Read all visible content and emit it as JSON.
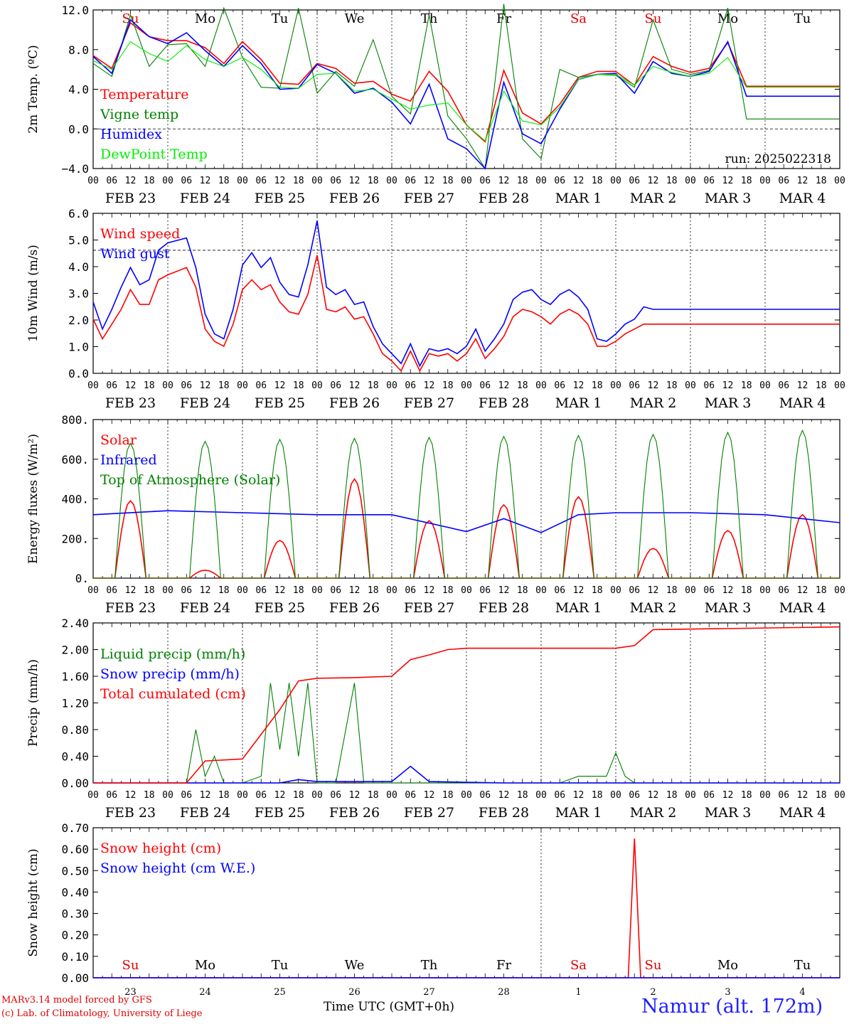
{
  "chart_data": [
    {
      "type": "line",
      "ylabel": "2m Temp. (ºC)",
      "ylim": [
        -4,
        12
      ],
      "yticks": [
        "−4.0",
        "0.0",
        "4.0",
        "8.0",
        "12.0"
      ],
      "x_ticks_hours": [
        "00",
        "06",
        "12",
        "18"
      ],
      "days": [
        "FEB 23",
        "FEB 24",
        "FEB 25",
        "FEB 26",
        "FEB 27",
        "FEB 28",
        "MAR  1",
        "MAR  2",
        "MAR  3",
        "MAR  4"
      ],
      "weekdays": [
        "Su",
        "Mo",
        "Tu",
        "We",
        "Th",
        "Fr",
        "Sa",
        "Su",
        "Mo",
        "Tu"
      ],
      "weekday_colors": [
        "#e00000",
        "#000",
        "#000",
        "#000",
        "#000",
        "#000",
        "#e00000",
        "#e00000",
        "#000",
        "#000"
      ],
      "annotation": "run: 2025022318",
      "series": [
        {
          "name": "Temperature",
          "color": "#ff0000",
          "x": [
            0,
            6,
            12,
            18,
            24,
            30,
            36,
            42,
            48,
            54,
            60,
            66,
            72,
            78,
            84,
            90,
            96,
            102,
            108,
            114,
            120,
            126,
            132,
            138,
            144,
            150,
            156,
            162,
            168,
            174,
            180,
            186,
            192,
            198,
            204,
            210,
            216,
            222,
            228,
            234,
            240
          ],
          "values": [
            7.4,
            6.1,
            10.7,
            9.3,
            8.9,
            8.9,
            8.2,
            6.6,
            8.8,
            7.0,
            4.6,
            4.5,
            6.6,
            6.1,
            4.6,
            4.8,
            3.5,
            2.8,
            5.8,
            3.8,
            0.4,
            -1.3,
            5.9,
            1.6,
            0.5,
            2.5,
            5.2,
            5.8,
            5.8,
            4.4,
            7.3,
            6.3,
            5.7,
            6.1,
            8.7,
            4.3,
            4.3,
            4.3,
            4.3,
            4.3,
            4.3
          ]
        },
        {
          "name": "Vigne temp",
          "color": "#008000",
          "x": [
            0,
            6,
            12,
            18,
            24,
            30,
            36,
            42,
            48,
            54,
            60,
            66,
            72,
            78,
            84,
            90,
            96,
            102,
            108,
            114,
            120,
            126,
            132,
            138,
            144,
            150,
            156,
            162,
            168,
            174,
            180,
            186,
            192,
            198,
            204,
            210,
            216,
            222,
            228,
            234,
            240
          ],
          "values": [
            6.6,
            5.3,
            11.5,
            6.3,
            8.5,
            8.6,
            6.3,
            12.2,
            7.2,
            4.2,
            4.1,
            12.2,
            3.6,
            5.8,
            4.3,
            9.0,
            3.3,
            1.5,
            11.5,
            1.3,
            -1.0,
            -4.0,
            12.6,
            -1.0,
            -3.0,
            6.0,
            5.2,
            5.5,
            5.4,
            4.2,
            11.0,
            6.0,
            5.5,
            5.9,
            12.2,
            1.0,
            1.0,
            1.0,
            1.0,
            1.0,
            1.0
          ]
        },
        {
          "name": "Humidex",
          "color": "#0000ff",
          "x": [
            0,
            6,
            12,
            18,
            24,
            30,
            36,
            42,
            48,
            54,
            60,
            66,
            72,
            78,
            84,
            90,
            96,
            102,
            108,
            114,
            120,
            126,
            132,
            138,
            144,
            150,
            156,
            162,
            168,
            174,
            180,
            186,
            192,
            198,
            204,
            210,
            216,
            222,
            228,
            234,
            240
          ],
          "values": [
            7.3,
            5.6,
            11.0,
            9.3,
            8.6,
            9.7,
            7.9,
            6.3,
            8.4,
            6.6,
            4.0,
            4.1,
            6.5,
            5.6,
            3.6,
            4.1,
            2.7,
            0.5,
            4.5,
            -1.0,
            -2.0,
            -4.0,
            4.7,
            -0.5,
            -1.5,
            2.0,
            5.0,
            5.5,
            5.6,
            3.6,
            6.8,
            5.6,
            5.3,
            5.8,
            8.8,
            3.3,
            3.3,
            3.3,
            3.3,
            3.3,
            3.3
          ]
        },
        {
          "name": "DewPoint Temp",
          "color": "#00ee00",
          "x": [
            0,
            6,
            12,
            18,
            24,
            30,
            36,
            42,
            48,
            54,
            60,
            66,
            72,
            78,
            84,
            90,
            96,
            102,
            108,
            114,
            120,
            126,
            132,
            138,
            144,
            150,
            156,
            162,
            168,
            174,
            180,
            186,
            192,
            198,
            204,
            210,
            216,
            222,
            228,
            234,
            240
          ],
          "values": [
            6.9,
            6.0,
            8.8,
            7.6,
            6.8,
            8.4,
            7.0,
            6.3,
            7.2,
            6.0,
            4.2,
            4.1,
            5.5,
            5.6,
            3.8,
            4.0,
            3.0,
            2.0,
            2.4,
            2.6,
            0.4,
            -1.2,
            3.8,
            0.8,
            0.4,
            2.2,
            5.0,
            5.5,
            5.5,
            4.4,
            6.3,
            5.7,
            5.3,
            5.6,
            7.2,
            4.2,
            4.2,
            4.2,
            4.2,
            4.2,
            4.2
          ]
        }
      ]
    },
    {
      "type": "line",
      "ylabel": "10m Wind (m/s)",
      "ylim": [
        0,
        6.5
      ],
      "yticks": [
        "0.0",
        "1.0",
        "2.0",
        "3.0",
        "4.0",
        "5.0",
        "6.0"
      ],
      "days": [
        "FEB 23",
        "FEB 24",
        "FEB 25",
        "FEB 26",
        "FEB 27",
        "FEB 28",
        "MAR  1",
        "MAR  2",
        "MAR  3",
        "MAR  4"
      ],
      "series": [
        {
          "name": "Wind speed",
          "color": "#ff0000",
          "x": [
            0,
            3,
            6,
            9,
            12,
            15,
            18,
            21,
            24,
            30,
            33,
            36,
            39,
            42,
            45,
            48,
            51,
            54,
            57,
            60,
            63,
            66,
            69,
            72,
            75,
            78,
            81,
            84,
            87,
            90,
            93,
            96,
            99,
            102,
            105,
            108,
            111,
            114,
            117,
            120,
            123,
            126,
            129,
            132,
            135,
            138,
            141,
            144,
            147,
            150,
            153,
            156,
            159,
            162,
            165,
            168,
            171,
            174,
            177,
            180,
            183,
            186,
            189,
            192,
            195,
            198,
            201,
            204,
            207,
            210,
            213,
            216,
            219,
            222,
            225,
            228,
            231,
            234,
            237,
            240
          ],
          "values": [
            2.2,
            1.4,
            2.0,
            2.6,
            3.4,
            2.8,
            2.8,
            3.8,
            4.0,
            4.3,
            3.5,
            1.8,
            1.3,
            1.1,
            2.0,
            3.4,
            3.8,
            3.4,
            3.6,
            2.9,
            2.5,
            2.4,
            3.2,
            4.8,
            2.6,
            2.5,
            2.7,
            2.2,
            2.3,
            1.6,
            0.8,
            0.5,
            0.1,
            0.9,
            0.1,
            0.8,
            0.7,
            0.8,
            0.5,
            0.8,
            1.4,
            0.6,
            1.0,
            1.5,
            2.3,
            2.6,
            2.5,
            2.3,
            2.0,
            2.4,
            2.6,
            2.4,
            2.0,
            1.1,
            1.1,
            1.3,
            1.6,
            1.8,
            2.0,
            2.0,
            2.0,
            2.0,
            2.0,
            2.0,
            2.0,
            2.0,
            2.0,
            2.0,
            2.0,
            2.0,
            2.0,
            2.0,
            2.0,
            2.0,
            2.0,
            2.0,
            2.0,
            2.0,
            2.0,
            2.0
          ]
        },
        {
          "name": "Wind gust",
          "color": "#0000ff",
          "x": [
            0,
            3,
            6,
            9,
            12,
            15,
            18,
            21,
            24,
            30,
            33,
            36,
            39,
            42,
            45,
            48,
            51,
            54,
            57,
            60,
            63,
            66,
            69,
            72,
            75,
            78,
            81,
            84,
            87,
            90,
            93,
            96,
            99,
            102,
            105,
            108,
            111,
            114,
            117,
            120,
            123,
            126,
            129,
            132,
            135,
            138,
            141,
            144,
            147,
            150,
            153,
            156,
            159,
            162,
            165,
            168,
            171,
            174,
            177,
            180,
            183,
            186,
            189,
            192,
            195,
            198,
            201,
            204,
            207,
            210,
            213,
            216,
            219,
            222,
            225,
            228,
            231,
            234,
            237,
            240
          ],
          "values": [
            2.9,
            1.8,
            2.6,
            3.5,
            4.3,
            3.6,
            3.8,
            5.0,
            5.3,
            5.5,
            4.3,
            2.4,
            1.6,
            1.4,
            2.6,
            4.4,
            4.9,
            4.3,
            4.7,
            3.7,
            3.2,
            3.1,
            4.4,
            6.2,
            3.5,
            3.2,
            3.4,
            2.8,
            2.9,
            1.9,
            1.2,
            0.8,
            0.4,
            1.2,
            0.3,
            1.0,
            0.9,
            1.0,
            0.8,
            1.1,
            1.8,
            0.9,
            1.4,
            2.0,
            3.0,
            3.3,
            3.4,
            3.0,
            2.8,
            3.2,
            3.4,
            3.1,
            2.6,
            1.4,
            1.3,
            1.6,
            2.0,
            2.2,
            2.7,
            2.6,
            2.6,
            2.6,
            2.6,
            2.6,
            2.6,
            2.6,
            2.6,
            2.6,
            2.6,
            2.6,
            2.6,
            2.6,
            2.6,
            2.6,
            2.6,
            2.6,
            2.6,
            2.6,
            2.6,
            2.6
          ]
        }
      ]
    },
    {
      "type": "line",
      "ylabel": "Energy fluxes (W/m²)",
      "ylim": [
        0,
        800
      ],
      "yticks": [
        "0.",
        "200.",
        "400.",
        "600.",
        "800."
      ],
      "days": [
        "FEB 23",
        "FEB 24",
        "FEB 25",
        "FEB 26",
        "FEB 27",
        "FEB 28",
        "MAR  1",
        "MAR  2",
        "MAR  3",
        "MAR  4"
      ],
      "series": [
        {
          "name": "Solar",
          "color": "#ff0000",
          "day_peaks": [
            390,
            40,
            190,
            500,
            290,
            370,
            410,
            150,
            240,
            320
          ]
        },
        {
          "name": "Infrared",
          "color": "#0000ff",
          "x": [
            0,
            24,
            48,
            72,
            96,
            120,
            132,
            144,
            156,
            168,
            192,
            216,
            240
          ],
          "values": [
            320,
            340,
            330,
            320,
            320,
            235,
            300,
            230,
            320,
            330,
            330,
            320,
            280
          ]
        },
        {
          "name": "Top of Atmosphere (Solar)",
          "color": "#008000",
          "day_peaks": [
            680,
            690,
            700,
            705,
            710,
            715,
            720,
            725,
            735,
            745
          ]
        }
      ]
    },
    {
      "type": "line",
      "ylabel": "Precip (mm/h)",
      "ylim": [
        0,
        2.4
      ],
      "yticks": [
        "0.00",
        "0.40",
        "0.80",
        "1.20",
        "1.60",
        "2.00",
        "2.40"
      ],
      "days": [
        "FEB 23",
        "FEB 24",
        "FEB 25",
        "FEB 26",
        "FEB 27",
        "FEB 28",
        "MAR  1",
        "MAR  2",
        "MAR  3",
        "MAR  4"
      ],
      "series": [
        {
          "name": "Liquid precip (mm/h)",
          "color": "#008000",
          "x": [
            0,
            30,
            33,
            36,
            39,
            42,
            48,
            54,
            57,
            60,
            63,
            66,
            69,
            72,
            75,
            78,
            84,
            87,
            90,
            96,
            120,
            132,
            144,
            150,
            156,
            162,
            165,
            168,
            171,
            174,
            240
          ],
          "values": [
            0,
            0,
            0.8,
            0.1,
            0.4,
            0,
            0,
            0.1,
            1.5,
            0.5,
            1.5,
            0.4,
            1.5,
            0,
            0,
            0,
            1.5,
            0,
            0,
            0,
            0,
            0,
            0,
            0,
            0.1,
            0.1,
            0.1,
            0.45,
            0.1,
            0,
            0
          ]
        },
        {
          "name": "Snow precip (mm/h)",
          "color": "#0000ff",
          "x": [
            0,
            60,
            66,
            72,
            96,
            102,
            108,
            132,
            240
          ],
          "values": [
            0,
            0,
            0.05,
            0.02,
            0.02,
            0.25,
            0.02,
            0,
            0
          ]
        },
        {
          "name": "Total cumulated (cm)",
          "color": "#ff0000",
          "x": [
            0,
            30,
            36,
            48,
            60,
            66,
            72,
            84,
            96,
            102,
            108,
            114,
            120,
            168,
            174,
            180,
            240
          ],
          "values": [
            0,
            0,
            0.33,
            0.36,
            1.1,
            1.53,
            1.57,
            1.58,
            1.6,
            1.85,
            1.92,
            2.0,
            2.02,
            2.02,
            2.06,
            2.3,
            2.34
          ]
        }
      ]
    },
    {
      "type": "line",
      "ylabel": "Snow height (cm)",
      "ylim": [
        0,
        0.7
      ],
      "yticks": [
        "0.00",
        "0.10",
        "0.20",
        "0.30",
        "0.40",
        "0.50",
        "0.60",
        "0.70"
      ],
      "bottom_days": [
        "23",
        "24",
        "25",
        "26",
        "27",
        "28",
        "1",
        "2",
        "3",
        "4"
      ],
      "weekdays": [
        "Su",
        "Mo",
        "Tu",
        "We",
        "Th",
        "Fr",
        "Sa",
        "Su",
        "Mo",
        "Tu"
      ],
      "weekday_colors": [
        "#e00000",
        "#000",
        "#000",
        "#000",
        "#000",
        "#000",
        "#e00000",
        "#e00000",
        "#000",
        "#000"
      ],
      "series": [
        {
          "name": "Snow height (cm)",
          "color": "#ff0000",
          "x": [
            0,
            172,
            174,
            176,
            240
          ],
          "values": [
            0,
            0,
            0.65,
            0,
            0
          ]
        },
        {
          "name": "Snow height (cm W.E.)",
          "color": "#0000ff",
          "x": [
            0,
            240
          ],
          "values": [
            0,
            0
          ]
        }
      ]
    }
  ],
  "footer": {
    "line1": "MARv3.14 model forced by GFS",
    "line2": "(c) Lab. of Climatology, University of Liege",
    "x_title": "Time UTC (GMT+0h)",
    "month_labels": "FEB                                                                                           MAR",
    "station": "Namur (alt. 172m)"
  }
}
